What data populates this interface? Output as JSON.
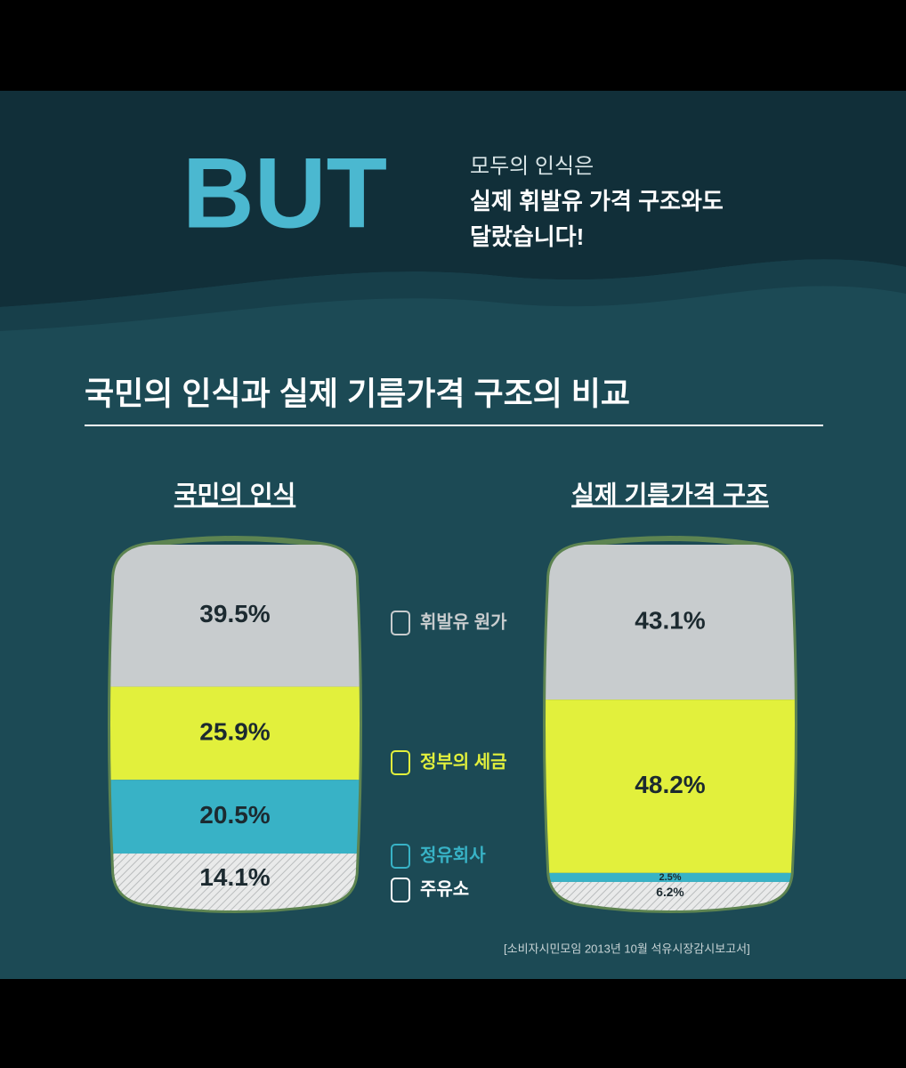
{
  "header": {
    "headline": "BUT",
    "lines": [
      "모두의 인식은",
      "실제 휘발유 가격 구조와도",
      "달랐습니다!"
    ]
  },
  "chart_data": {
    "type": "stacked-barrel",
    "title": "국민의 인식과 실제 기름가격 구조의 비교",
    "categories": [
      "국민의 인식",
      "실제 기름가격 구조"
    ],
    "series": [
      {
        "name": "휘발유 원가",
        "color": "#c8ccce",
        "values": [
          39.5,
          43.1
        ],
        "value_labels": [
          "39.5%",
          "43.1%"
        ]
      },
      {
        "name": "정부의 세금",
        "color": "#e2f03c",
        "values": [
          25.9,
          48.2
        ],
        "value_labels": [
          "25.9%",
          "48.2%"
        ]
      },
      {
        "name": "정유회사",
        "color": "#38b2c6",
        "values": [
          20.5,
          2.5
        ],
        "value_labels": [
          "20.5%",
          "2.5%"
        ]
      },
      {
        "name": "주유소",
        "color": "#e9eaea",
        "values": [
          14.1,
          6.2
        ],
        "value_labels": [
          "14.1%",
          "6.2%"
        ]
      }
    ]
  },
  "source": "[소비자시민모임 2013년 10월 석유시장감시보고서]"
}
